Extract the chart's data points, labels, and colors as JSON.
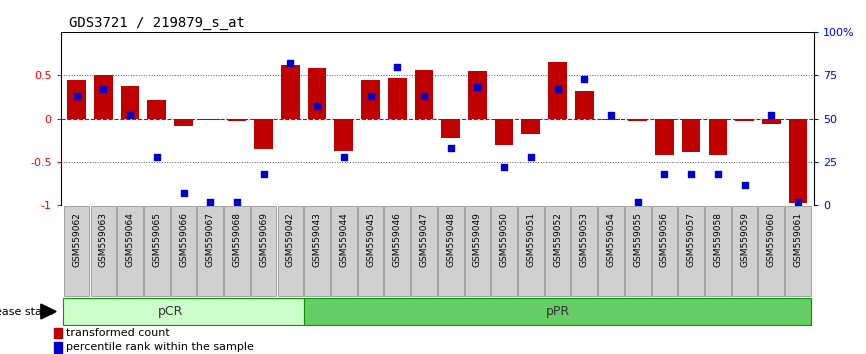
{
  "title": "GDS3721 / 219879_s_at",
  "categories": [
    "GSM559062",
    "GSM559063",
    "GSM559064",
    "GSM559065",
    "GSM559066",
    "GSM559067",
    "GSM559068",
    "GSM559069",
    "GSM559042",
    "GSM559043",
    "GSM559044",
    "GSM559045",
    "GSM559046",
    "GSM559047",
    "GSM559048",
    "GSM559049",
    "GSM559050",
    "GSM559051",
    "GSM559052",
    "GSM559053",
    "GSM559054",
    "GSM559055",
    "GSM559056",
    "GSM559057",
    "GSM559058",
    "GSM559059",
    "GSM559060",
    "GSM559061"
  ],
  "bar_values": [
    0.45,
    0.5,
    0.38,
    0.22,
    -0.08,
    -0.02,
    -0.03,
    -0.35,
    0.62,
    0.58,
    -0.37,
    0.45,
    0.47,
    0.56,
    -0.22,
    0.55,
    -0.3,
    -0.18,
    0.65,
    0.32,
    -0.02,
    -0.03,
    -0.42,
    -0.38,
    -0.42,
    -0.03,
    -0.06,
    -0.97
  ],
  "percentile_values": [
    63,
    67,
    52,
    28,
    7,
    2,
    2,
    18,
    82,
    57,
    28,
    63,
    80,
    63,
    33,
    68,
    22,
    28,
    67,
    73,
    52,
    2,
    18,
    18,
    18,
    12,
    52,
    2
  ],
  "pCR_count": 9,
  "bar_color": "#c00000",
  "percentile_color": "#0000cc",
  "pCR_color": "#ccffcc",
  "pPR_color": "#66cc66",
  "label_bg_color": "#d0d0d0",
  "ylim": [
    -1.0,
    1.0
  ],
  "right_ylim": [
    0,
    100
  ],
  "hline_color": "#cc0000",
  "dotted_color": "#555555",
  "bar_width": 0.7,
  "background_color": "#ffffff",
  "title_fontsize": 10,
  "axis_fontsize": 8,
  "label_fontsize": 6.5
}
